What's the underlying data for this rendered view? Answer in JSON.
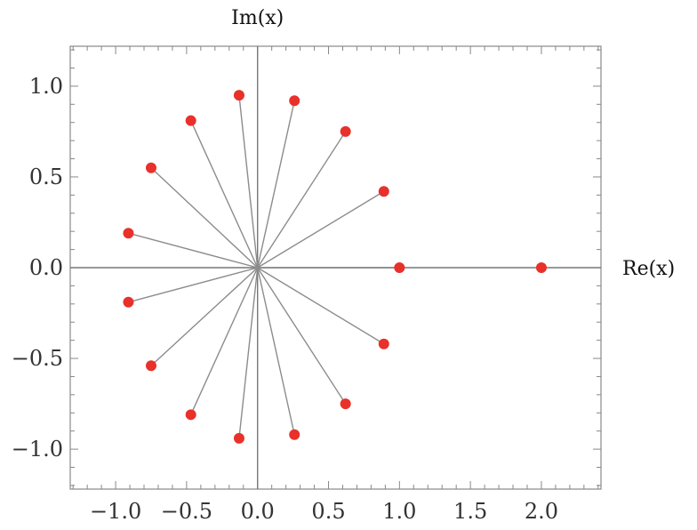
{
  "chart_data": {
    "type": "scatter",
    "title": "",
    "xlabel": "Re(x)",
    "ylabel": "Im(x)",
    "xlim": [
      -1.32,
      2.42
    ],
    "ylim": [
      -1.22,
      1.22
    ],
    "x_ticks": [
      -1.0,
      -0.5,
      0.0,
      0.5,
      1.0,
      1.5,
      2.0
    ],
    "x_tick_labels": [
      "−1.0",
      "−0.5",
      "0.0",
      "0.5",
      "1.0",
      "1.5",
      "2.0"
    ],
    "y_ticks": [
      1.0,
      0.5,
      0.0,
      -0.5,
      -1.0
    ],
    "y_tick_labels": [
      "1.0",
      "0.5",
      "0.0",
      "−0.5",
      "−1.0"
    ],
    "grid": false,
    "legend": "none",
    "series": [
      {
        "points": [
          {
            "x": 2.0,
            "y": 0.0
          },
          {
            "x": 1.0,
            "y": 0.0
          },
          {
            "x": 0.89,
            "y": 0.42
          },
          {
            "x": 0.62,
            "y": 0.75
          },
          {
            "x": 0.26,
            "y": 0.92
          },
          {
            "x": -0.13,
            "y": 0.95
          },
          {
            "x": -0.47,
            "y": 0.81
          },
          {
            "x": -0.75,
            "y": 0.55
          },
          {
            "x": -0.91,
            "y": 0.19
          },
          {
            "x": -0.91,
            "y": -0.19
          },
          {
            "x": -0.75,
            "y": -0.54
          },
          {
            "x": -0.47,
            "y": -0.81
          },
          {
            "x": -0.13,
            "y": -0.94
          },
          {
            "x": 0.26,
            "y": -0.92
          },
          {
            "x": 0.62,
            "y": -0.75
          },
          {
            "x": 0.89,
            "y": -0.42
          }
        ],
        "rays_from_origin": true,
        "marker_color": "#e8312a",
        "line_color": "#8c8c8c"
      }
    ]
  },
  "colors": {
    "frame": "#888888",
    "axis_line": "#777777",
    "background": "#ffffff"
  }
}
